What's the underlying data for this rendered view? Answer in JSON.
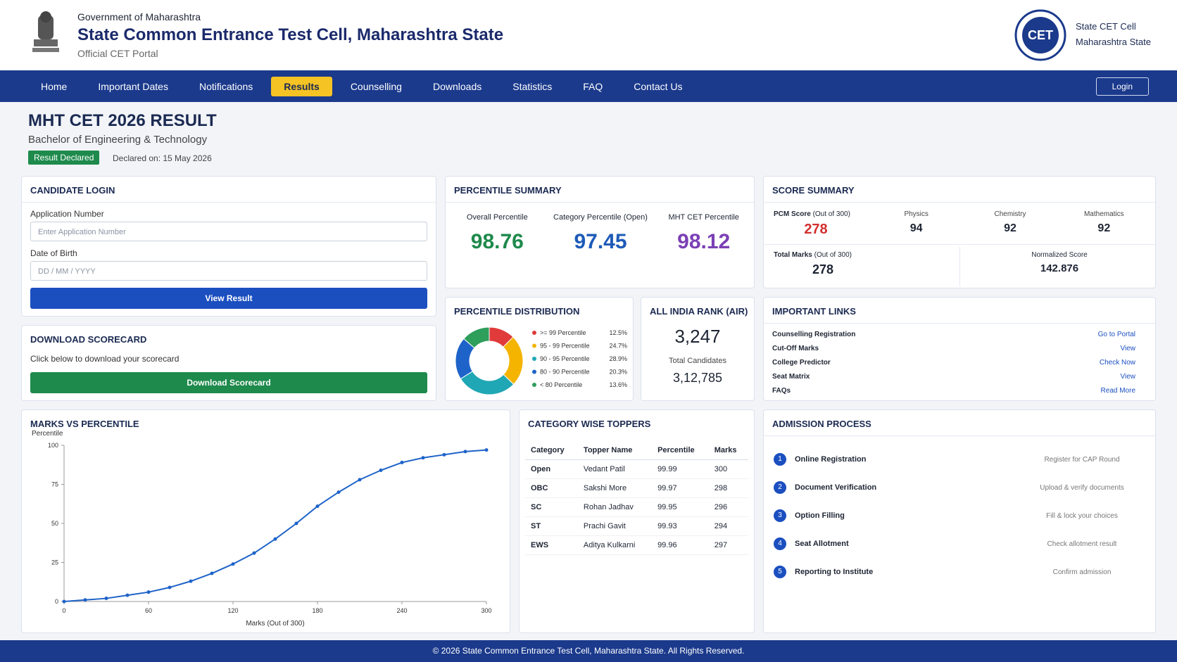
{
  "header": {
    "org": "Government of Maharashtra",
    "title": "State Common Entrance Test Cell, Maharashtra State",
    "portal": "Official CET Portal",
    "logo_text": "CET",
    "right_line1": "State CET Cell",
    "right_line2": "Maharashtra State"
  },
  "nav": {
    "items": [
      {
        "label": "Home"
      },
      {
        "label": "Important Dates"
      },
      {
        "label": "Notifications"
      },
      {
        "label": "Results",
        "active": true
      },
      {
        "label": "Counselling"
      },
      {
        "label": "Downloads"
      },
      {
        "label": "Statistics"
      },
      {
        "label": "FAQ"
      },
      {
        "label": "Contact Us"
      }
    ],
    "login": "Login"
  },
  "result": {
    "title": "MHT CET 2026 RESULT",
    "subtitle": "Bachelor of Engineering & Technology",
    "badge": "Result Declared",
    "declared": "Declared on: 15 May 2026"
  },
  "candidate_login": {
    "title": "CANDIDATE LOGIN",
    "app_label": "Application Number",
    "app_placeholder": "Enter Application Number",
    "dob_label": "Date of Birth",
    "dob_placeholder": "DD / MM / YYYY",
    "button": "View Result"
  },
  "download": {
    "title": "DOWNLOAD SCORECARD",
    "text": "Click below to download your scorecard",
    "button": "Download Scorecard"
  },
  "percentile_summary": {
    "title": "PERCENTILE SUMMARY",
    "items": [
      {
        "label": "Overall Percentile",
        "value": 98.76,
        "color": "#1e8a4c"
      },
      {
        "label": "Category Percentile (Open)",
        "value": 97.45,
        "color": "#1e5bb8"
      },
      {
        "label": "MHT CET Percentile",
        "value": 98.12,
        "color": "#7b3fb5"
      }
    ]
  },
  "air": {
    "title": "ALL INDIA RANK (AIR)",
    "rank": "3,247",
    "total_label": "Total Candidates",
    "total": "3,12,785"
  },
  "score_summary": {
    "title": "SCORE SUMMARY",
    "pcm_label": "PCM Score",
    "pcm_note": "(Out of 300)",
    "pcm": 278,
    "subjects": [
      {
        "name": "Physics",
        "score": 94
      },
      {
        "name": "Chemistry",
        "score": 92
      },
      {
        "name": "Mathematics",
        "score": 92
      }
    ],
    "total_label": "Total Marks",
    "total_note": "(Out of 300)",
    "total": 278,
    "normalized_label": "Normalized Score",
    "normalized": 142.876
  },
  "important_links": {
    "title": "IMPORTANT LINKS",
    "items": [
      {
        "name": "Counselling Registration",
        "action": "Go to Portal"
      },
      {
        "name": "Cut-Off Marks",
        "action": "View"
      },
      {
        "name": "College Predictor",
        "action": "Check Now"
      },
      {
        "name": "Seat Matrix",
        "action": "View"
      },
      {
        "name": "FAQs",
        "action": "Read More"
      }
    ]
  },
  "toppers": {
    "title": "CATEGORY WISE TOPPERS",
    "columns": [
      "Category",
      "Topper Name",
      "Percentile",
      "Marks"
    ],
    "rows": [
      [
        "Open",
        "Vedant Patil",
        99.99,
        300
      ],
      [
        "OBC",
        "Sakshi More",
        99.97,
        298
      ],
      [
        "SC",
        "Rohan Jadhav",
        99.95,
        296
      ],
      [
        "ST",
        "Prachi Gavit",
        99.93,
        294
      ],
      [
        "EWS",
        "Aditya Kulkarni",
        99.96,
        297
      ]
    ]
  },
  "admission": {
    "title": "ADMISSION PROCESS",
    "steps": [
      {
        "number": 1,
        "name": "Online Registration",
        "note": "Register for CAP Round"
      },
      {
        "number": 2,
        "name": "Document Verification",
        "note": "Upload & verify documents"
      },
      {
        "number": 3,
        "name": "Option Filling",
        "note": "Fill & lock your choices"
      },
      {
        "number": 4,
        "name": "Seat Allotment",
        "note": "Check allotment result"
      },
      {
        "number": 5,
        "name": "Reporting to Institute",
        "note": "Confirm admission"
      }
    ]
  },
  "footer": "© 2026 State Common Entrance Test Cell, Maharashtra State. All Rights Reserved.",
  "chart_data": [
    {
      "type": "pie",
      "title": "PERCENTILE DISTRIBUTION",
      "donut": true,
      "categories": [
        ">= 99 Percentile",
        "95 - 99 Percentile",
        "90 - 95 Percentile",
        "80 - 90 Percentile",
        "< 80 Percentile"
      ],
      "values": [
        12.5,
        24.7,
        28.9,
        20.3,
        13.6
      ],
      "value_labels": [
        "12.5%",
        "24.7%",
        "28.9%",
        "20.3%",
        "13.6%"
      ],
      "colors": [
        "#e03a3a",
        "#f4b400",
        "#1fa7b5",
        "#1e63c9",
        "#2e9e5b"
      ]
    },
    {
      "type": "line",
      "title": "MARKS VS PERCENTILE",
      "x_label": "Marks (Out of 300)",
      "y_label": "Percentile",
      "x": [
        0,
        15,
        30,
        45,
        60,
        75,
        90,
        105,
        120,
        135,
        150,
        165,
        180,
        195,
        210,
        225,
        240,
        255,
        270,
        285,
        300
      ],
      "values": [
        0,
        1,
        2,
        4,
        6,
        9,
        13,
        18,
        24,
        31,
        40,
        50,
        61,
        70,
        78,
        84,
        89,
        92,
        94,
        96,
        97
      ],
      "color": "#1e63c9",
      "markers": true,
      "xlim": [
        0,
        300
      ],
      "xticks": [
        0,
        60,
        120,
        180,
        240,
        300
      ],
      "ylim": [
        0,
        100
      ],
      "yticks": [
        0,
        25,
        50,
        75,
        100
      ]
    }
  ]
}
